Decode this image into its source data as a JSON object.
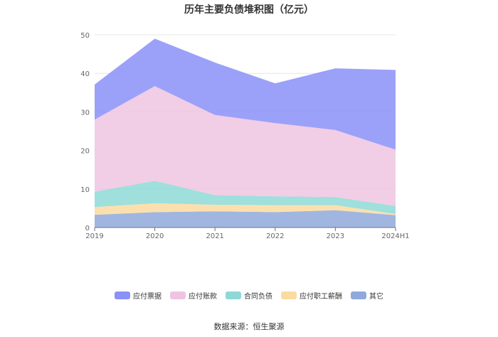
{
  "chart_data": {
    "type": "area",
    "stacked": true,
    "title": "历年主要负债堆积图（亿元）",
    "categories": [
      "2019",
      "2020",
      "2021",
      "2022",
      "2023",
      "2024H1"
    ],
    "ylim": [
      0,
      50
    ],
    "yticks": [
      "0",
      "10",
      "20",
      "30",
      "40",
      "50"
    ],
    "grid": true,
    "legend_position": "bottom",
    "series": [
      {
        "name": "其它",
        "color": "#8fa9dc",
        "values": [
          3.3,
          4.0,
          4.2,
          4.0,
          4.5,
          3.2
        ]
      },
      {
        "name": "应付职工薪酬",
        "color": "#fadba0",
        "values": [
          2.0,
          2.3,
          1.7,
          1.8,
          1.3,
          0.3
        ]
      },
      {
        "name": "合同负债",
        "color": "#8ed9d6",
        "values": [
          4.0,
          5.8,
          2.5,
          2.3,
          2.1,
          2.1
        ]
      },
      {
        "name": "应付账款",
        "color": "#efc4e2",
        "values": [
          18.7,
          24.6,
          20.8,
          19.0,
          17.4,
          14.6
        ]
      },
      {
        "name": "应付票据",
        "color": "#8a91f7",
        "values": [
          9.1,
          12.3,
          13.6,
          10.3,
          16.0,
          20.7
        ]
      }
    ]
  },
  "legend_order": [
    "应付票据",
    "应付账款",
    "合同负债",
    "应付职工薪酬",
    "其它"
  ],
  "source": "数据来源：恒生聚源"
}
